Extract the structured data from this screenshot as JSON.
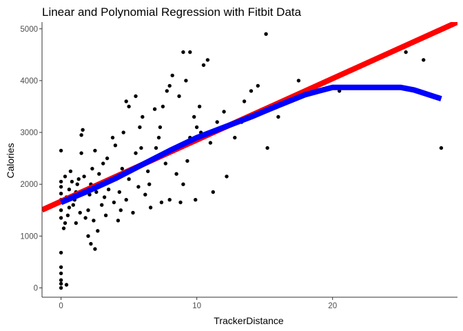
{
  "chart_data": {
    "type": "scatter",
    "title": "Linear and Polynomial Regression with Fitbit Data",
    "xlabel": "TrackerDistance",
    "ylabel": "Calories",
    "xlim": [
      -1.4,
      29.2
    ],
    "ylim": [
      -180,
      5130
    ],
    "x_ticks": [
      0,
      10,
      20
    ],
    "x_tick_labels": [
      "0",
      "10",
      "20"
    ],
    "y_ticks": [
      0,
      1000,
      2000,
      3000,
      4000,
      5000
    ],
    "y_tick_labels": [
      "0",
      "1000",
      "2000",
      "3000",
      "4000",
      "5000"
    ],
    "grid": false,
    "legend": "none",
    "colors": {
      "points": "#000000",
      "linear_fit": "#ff0000",
      "polynomial_fit": "#0000ff",
      "axis": "#333333",
      "tick_label": "#4d4d4d"
    },
    "series": [
      {
        "type": "scatter",
        "points": [
          [
            0,
            0
          ],
          [
            0,
            80
          ],
          [
            0,
            150
          ],
          [
            0,
            280
          ],
          [
            0,
            400
          ],
          [
            0,
            680
          ],
          [
            0.4,
            60
          ],
          [
            0,
            1350
          ],
          [
            0,
            1500
          ],
          [
            0,
            1700
          ],
          [
            0,
            1820
          ],
          [
            0,
            1950
          ],
          [
            0,
            2050
          ],
          [
            0,
            2650
          ],
          [
            0.2,
            1150
          ],
          [
            0.3,
            1250
          ],
          [
            0.5,
            1400
          ],
          [
            0.6,
            1550
          ],
          [
            0.4,
            1750
          ],
          [
            0.6,
            1900
          ],
          [
            0.8,
            2050
          ],
          [
            0.3,
            2150
          ],
          [
            0.7,
            2250
          ],
          [
            0.9,
            1600
          ],
          [
            1.0,
            1700
          ],
          [
            1.1,
            1850
          ],
          [
            1.2,
            2000
          ],
          [
            1.3,
            2100
          ],
          [
            1.4,
            1450
          ],
          [
            1.5,
            2950
          ],
          [
            1.6,
            3050
          ],
          [
            1.8,
            1350
          ],
          [
            2.0,
            1500
          ],
          [
            2.1,
            1800
          ],
          [
            2.2,
            2000
          ],
          [
            2.3,
            2300
          ],
          [
            2.5,
            2650
          ],
          [
            2.0,
            1000
          ],
          [
            2.7,
            1100
          ],
          [
            2.2,
            850
          ],
          [
            2.5,
            750
          ],
          [
            3.0,
            1600
          ],
          [
            3.2,
            1750
          ],
          [
            3.5,
            1900
          ],
          [
            3.4,
            2500
          ],
          [
            3.8,
            2900
          ],
          [
            4.2,
            1300
          ],
          [
            4.4,
            1500
          ],
          [
            4.8,
            1700
          ],
          [
            5.0,
            2100
          ],
          [
            5.2,
            2300
          ],
          [
            5.5,
            2600
          ],
          [
            5.8,
            3100
          ],
          [
            6.0,
            3300
          ],
          [
            6.2,
            1800
          ],
          [
            6.5,
            2000
          ],
          [
            6.8,
            2500
          ],
          [
            7.0,
            2700
          ],
          [
            7.2,
            2900
          ],
          [
            5.0,
            3500
          ],
          [
            5.5,
            3700
          ],
          [
            4.8,
            3600
          ],
          [
            7.5,
            3500
          ],
          [
            7.8,
            3800
          ],
          [
            8.0,
            3900
          ],
          [
            8.2,
            4100
          ],
          [
            9.0,
            4550
          ],
          [
            9.5,
            4550
          ],
          [
            9.2,
            4000
          ],
          [
            10.5,
            4300
          ],
          [
            10.8,
            4400
          ],
          [
            9.8,
            3300
          ],
          [
            10.2,
            3500
          ],
          [
            8.5,
            2200
          ],
          [
            8.0,
            1700
          ],
          [
            9.0,
            2000
          ],
          [
            9.5,
            2900
          ],
          [
            10.0,
            3100
          ],
          [
            10.3,
            3000
          ],
          [
            11.0,
            2800
          ],
          [
            11.5,
            3200
          ],
          [
            12.0,
            3400
          ],
          [
            12.2,
            2150
          ],
          [
            12.8,
            2900
          ],
          [
            13.3,
            3200
          ],
          [
            13.5,
            3600
          ],
          [
            14.0,
            3800
          ],
          [
            14.5,
            3900
          ],
          [
            15.1,
            4900
          ],
          [
            15.2,
            2700
          ],
          [
            16.0,
            3300
          ],
          [
            16.5,
            3600
          ],
          [
            17.0,
            3700
          ],
          [
            17.5,
            4000
          ],
          [
            18.2,
            3800
          ],
          [
            18.6,
            3850
          ],
          [
            19.5,
            4000
          ],
          [
            20.5,
            3800
          ],
          [
            25.4,
            4550
          ],
          [
            26.7,
            4400
          ],
          [
            28.0,
            2700
          ],
          [
            1.5,
            2600
          ],
          [
            2.8,
            2200
          ],
          [
            3.1,
            2400
          ],
          [
            4.0,
            2750
          ],
          [
            4.6,
            3000
          ],
          [
            5.3,
            1450
          ],
          [
            6.6,
            1550
          ],
          [
            7.4,
            1650
          ],
          [
            8.8,
            1650
          ],
          [
            9.9,
            1700
          ],
          [
            11.2,
            1850
          ],
          [
            3.6,
            2050
          ],
          [
            4.3,
            1850
          ],
          [
            5.7,
            1950
          ],
          [
            6.4,
            2250
          ],
          [
            7.7,
            2400
          ],
          [
            8.3,
            2650
          ],
          [
            9.3,
            2450
          ],
          [
            2.4,
            1300
          ],
          [
            3.3,
            1400
          ],
          [
            1.1,
            1250
          ],
          [
            6.9,
            3450
          ],
          [
            7.3,
            3100
          ],
          [
            8.7,
            3700
          ],
          [
            5.9,
            2700
          ],
          [
            4.5,
            2300
          ],
          [
            3.9,
            1650
          ],
          [
            2.6,
            1850
          ],
          [
            1.7,
            2150
          ]
        ]
      },
      {
        "type": "line",
        "name": "",
        "fit": "linear",
        "x": [
          -1.4,
          29.2
        ],
        "y": [
          1504,
          5130
        ]
      },
      {
        "type": "line",
        "name": "",
        "fit": "polynomial",
        "x": [
          0,
          2,
          4,
          6,
          8,
          10,
          12,
          14,
          16,
          18,
          19,
          20,
          22,
          25,
          26,
          28
        ],
        "y": [
          1650,
          1870,
          2110,
          2380,
          2650,
          2900,
          3100,
          3300,
          3520,
          3730,
          3800,
          3870,
          3870,
          3870,
          3820,
          3650
        ]
      }
    ]
  }
}
